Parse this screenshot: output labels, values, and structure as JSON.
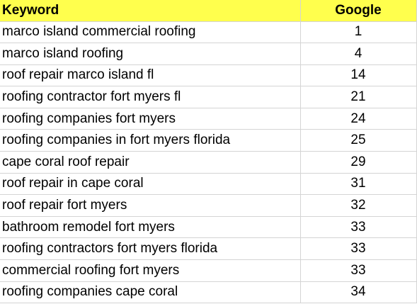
{
  "header": {
    "keyword": "Keyword",
    "google": "Google"
  },
  "header_bg": "#ffff4d",
  "rows": [
    {
      "keyword": "marco island commercial roofing",
      "google": "1"
    },
    {
      "keyword": "marco island roofing",
      "google": "4"
    },
    {
      "keyword": "roof repair marco island fl",
      "google": "14"
    },
    {
      "keyword": "roofing contractor fort myers fl",
      "google": "21"
    },
    {
      "keyword": "roofing companies fort myers",
      "google": "24"
    },
    {
      "keyword": "roofing companies in fort myers florida",
      "google": "25"
    },
    {
      "keyword": "cape coral roof repair",
      "google": "29"
    },
    {
      "keyword": "roof repair in cape coral",
      "google": "31"
    },
    {
      "keyword": "roof repair fort myers",
      "google": "32"
    },
    {
      "keyword": "bathroom remodel fort myers",
      "google": "33"
    },
    {
      "keyword": "roofing contractors fort myers florida",
      "google": "33"
    },
    {
      "keyword": "commercial roofing fort myers",
      "google": "33"
    },
    {
      "keyword": "roofing companies cape coral",
      "google": "34"
    }
  ]
}
